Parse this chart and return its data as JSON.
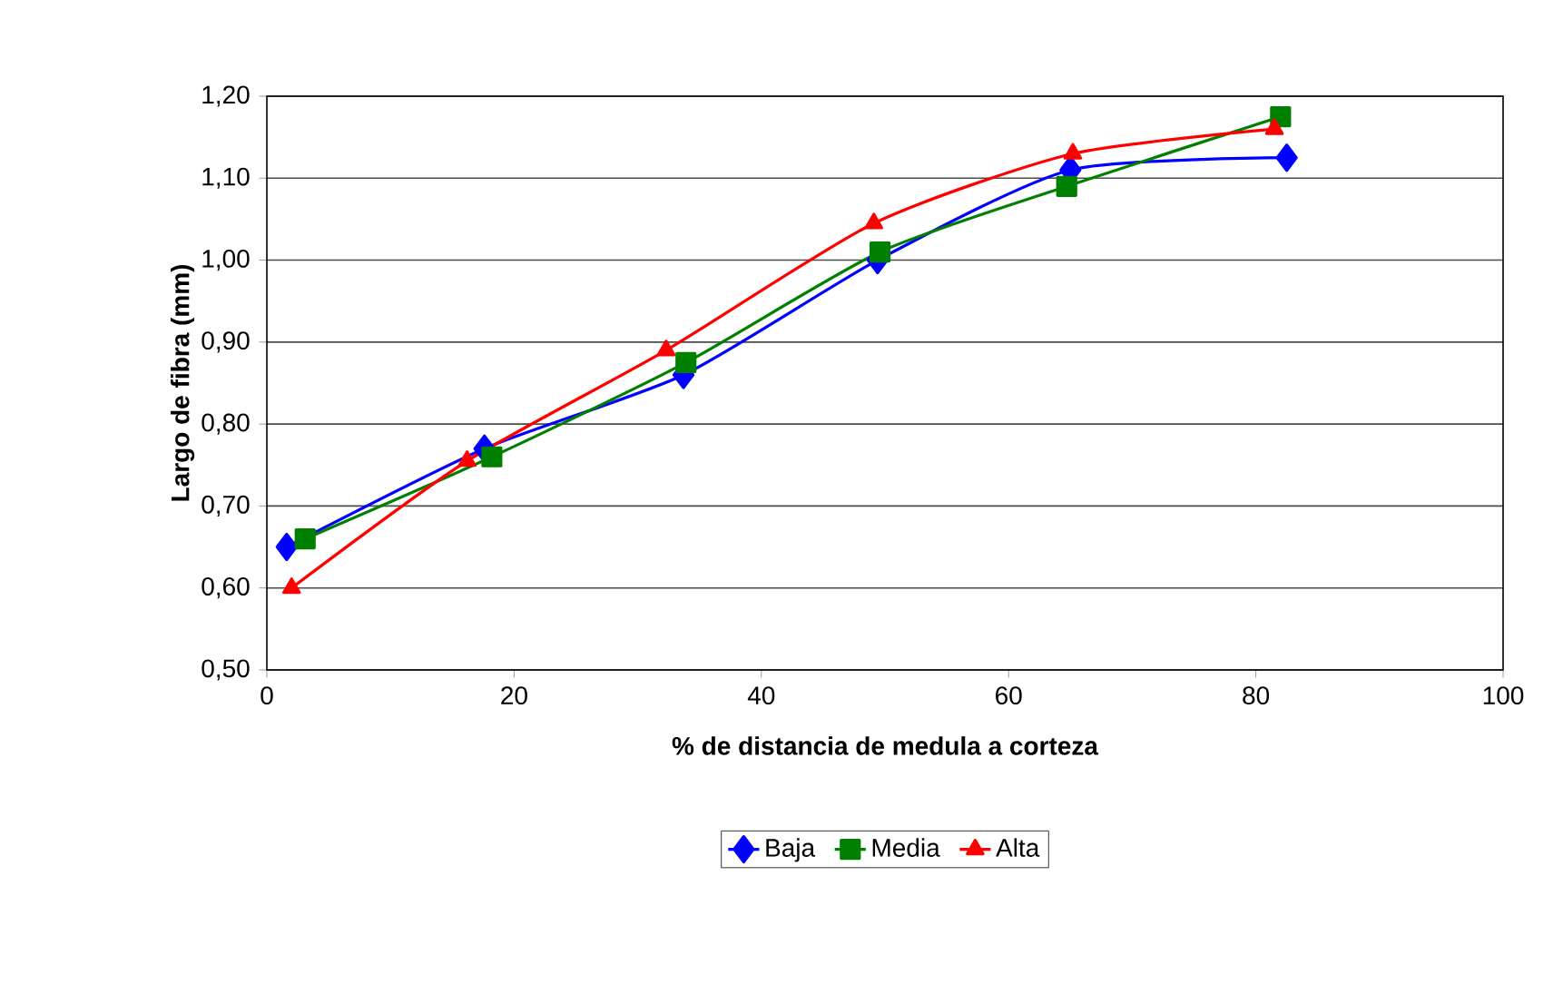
{
  "chart_data": {
    "type": "line",
    "xlabel": "% de distancia de  medula a corteza",
    "ylabel": "Largo de fibra (mm)",
    "series": [
      {
        "name": "Baja",
        "color": "#0000ff",
        "marker": "diamond",
        "x": [
          1.6,
          17.6,
          33.7,
          49.4,
          65.0,
          82.5
        ],
        "values": [
          0.65,
          0.77,
          0.86,
          1.0,
          1.11,
          1.125
        ]
      },
      {
        "name": "Media",
        "color": "#008000",
        "marker": "square",
        "x": [
          3.1,
          18.2,
          33.9,
          49.6,
          64.7,
          82.0
        ],
        "values": [
          0.66,
          0.76,
          0.875,
          1.01,
          1.09,
          1.175
        ]
      },
      {
        "name": "Alta",
        "color": "#ff0000",
        "marker": "triangle",
        "x": [
          2.0,
          16.2,
          32.3,
          49.1,
          65.2,
          81.5
        ],
        "values": [
          0.6,
          0.755,
          0.89,
          1.045,
          1.13,
          1.16
        ]
      }
    ],
    "xlim": [
      0,
      100
    ],
    "xticks": [
      0,
      20,
      40,
      60,
      80,
      100
    ],
    "ylim": [
      0.5,
      1.2
    ],
    "yticks": [
      {
        "value": 0.5,
        "label": "0,50"
      },
      {
        "value": 0.6,
        "label": "0,60"
      },
      {
        "value": 0.7,
        "label": "0,70"
      },
      {
        "value": 0.8,
        "label": "0,80"
      },
      {
        "value": 0.9,
        "label": "0,90"
      },
      {
        "value": 1.0,
        "label": "1,00"
      },
      {
        "value": 1.1,
        "label": "1,10"
      },
      {
        "value": 1.2,
        "label": "1,20"
      }
    ],
    "grid": "y",
    "legend": "bottom",
    "line_style": "solid"
  }
}
